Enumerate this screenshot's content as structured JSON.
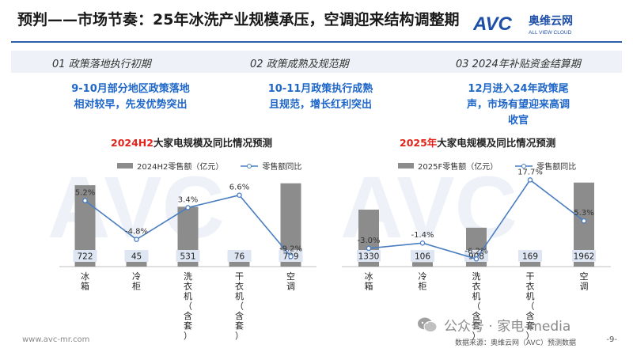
{
  "header": {
    "title": "预判——市场节奏：25年冰洗产业规模承压，空调迎来结构调整期",
    "logo_mark": "AVC",
    "logo_cn": "奥维云网",
    "logo_en": "ALL VIEW CLOUD"
  },
  "phases": [
    {
      "label": "01  政策落地执行初期",
      "lines": [
        "9-10月部分地区政策落地",
        "相对较早，先发优势突出"
      ]
    },
    {
      "label": "02  政策成熟及规范期",
      "lines": [
        "10-11月政策执行成熟",
        "且规范，增长红利突出"
      ]
    },
    {
      "label": "03  2024年补贴资金结算期",
      "lines": [
        "12月进入24年政策尾",
        "声，市场有望迎来高调",
        "收官"
      ]
    }
  ],
  "chart_data": [
    {
      "type": "bar",
      "title_highlight": "2024H2",
      "title_rest": "大家电规模及同比情况预测",
      "categories": [
        "冰箱",
        "冷柜",
        "洗衣机（含套）",
        "干衣机（含套）",
        "空调"
      ],
      "series": [
        {
          "name": "2024H2零售额（亿元）",
          "type": "bar",
          "values": [
            722,
            45,
            531,
            76,
            739
          ],
          "value_labels": [
            "722",
            "45",
            "531",
            "76",
            "739"
          ]
        },
        {
          "name": "零售额同比",
          "type": "line",
          "values": [
            5.2,
            -4.8,
            3.4,
            6.6,
            -9.2
          ],
          "value_labels": [
            "5.2%",
            "-4.8%",
            "3.4%",
            "6.6%",
            "-9.2%"
          ]
        }
      ],
      "ylim_bar": [
        0,
        800
      ],
      "ylim_line": [
        -12,
        10
      ]
    },
    {
      "type": "bar",
      "title_highlight": "2025年",
      "title_rest": "大家电规模及同比情况预测",
      "categories": [
        "冰箱",
        "冷柜",
        "洗衣机（含套）",
        "干衣机（含套）",
        "空调"
      ],
      "series": [
        {
          "name": "2025F零售额（亿元）",
          "type": "bar",
          "values": [
            1330,
            106,
            908,
            169,
            1962
          ],
          "value_labels": [
            "1330",
            "106",
            "908",
            "169",
            "1962"
          ]
        },
        {
          "name": "零售额同比",
          "type": "line",
          "values": [
            -3.0,
            -1.4,
            -6.2,
            17.7,
            5.3
          ],
          "value_labels": [
            "-3.0%",
            "-1.4%",
            "-6.2%",
            "17.7%",
            "5.3%"
          ]
        }
      ],
      "ylim_bar": [
        0,
        2050
      ],
      "ylim_line": [
        -9,
        19
      ]
    }
  ],
  "footer": {
    "url": "www.avc-mr.com",
    "wechat": "公众号 · 家电-media",
    "source": "数据来源：奥维云网（AVC）预测数据",
    "page": "-9-"
  },
  "colors": {
    "accent": "#1e66c8",
    "bar": "#8c8c8c",
    "line": "#4a7ec2",
    "highlight": "#e0241b",
    "label_box": "#dde6f2"
  }
}
